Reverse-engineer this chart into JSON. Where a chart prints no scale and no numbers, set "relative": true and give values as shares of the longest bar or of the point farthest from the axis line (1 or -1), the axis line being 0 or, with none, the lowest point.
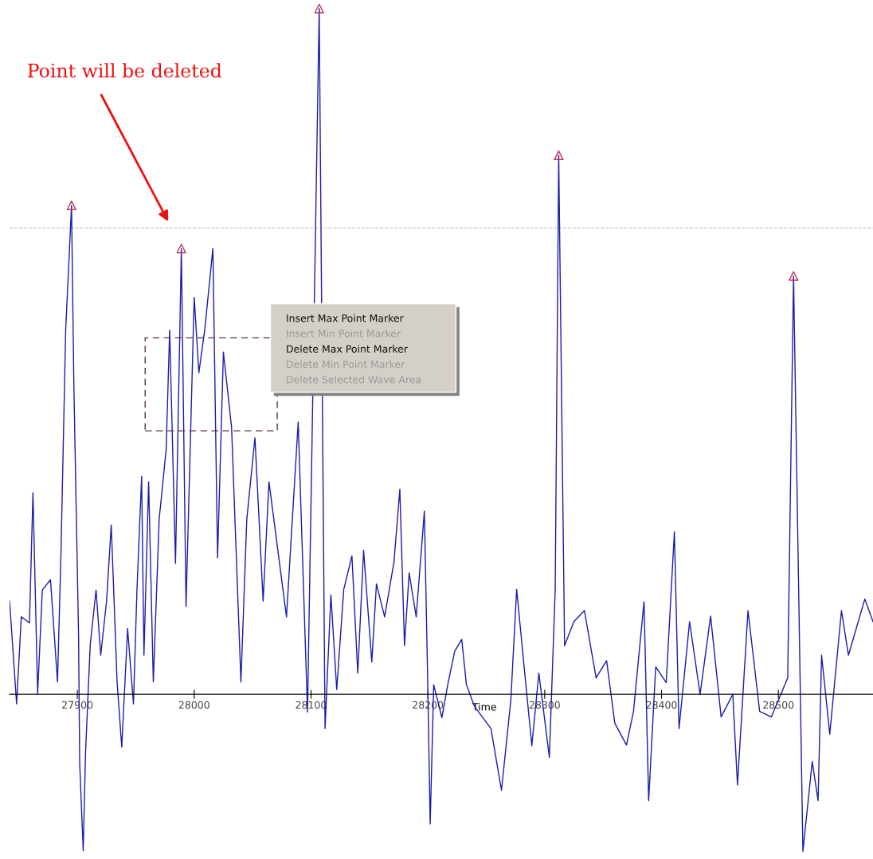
{
  "chart_data": {
    "type": "line",
    "relative": true,
    "xlabel": "Time",
    "xlim": [
      27842,
      28581
    ],
    "xticks": [
      27900,
      28000,
      28100,
      28200,
      28300,
      28400,
      28500
    ],
    "grid": false,
    "legend": false,
    "marker": "none",
    "line_style": "solid",
    "series": [
      {
        "color": "#1c1ca8",
        "x": [
          27842,
          27848,
          27852,
          27859,
          27862,
          27866,
          27870,
          27877,
          27883,
          27886,
          27890,
          27895,
          27897,
          27901,
          27902,
          27905,
          27907,
          27911,
          27916,
          27920,
          27925,
          27929,
          27934,
          27938,
          27943,
          27948,
          27951,
          27955,
          27957,
          27961,
          27965,
          27970,
          27976,
          27979,
          27984,
          27989,
          27993,
          28000,
          28004,
          28009,
          28016,
          28020,
          28025,
          28032,
          28040,
          28045,
          28052,
          28059,
          28064,
          28079,
          28089,
          28097,
          28107,
          28112,
          28117,
          28122,
          28128,
          28135,
          28140,
          28145,
          28152,
          28156,
          28163,
          28171,
          28176,
          28180,
          28184,
          28190,
          28197,
          28200,
          28202,
          28205,
          28212,
          28217,
          28223,
          28229,
          28233,
          28240,
          28247,
          28254,
          28263,
          28271,
          28276,
          28282,
          28289,
          28295,
          28304,
          28309,
          28312,
          28317,
          28325,
          28334,
          28344,
          28353,
          28360,
          28370,
          28376,
          28385,
          28389,
          28395,
          28404,
          28411,
          28415,
          28424,
          28433,
          28442,
          28451,
          28461,
          28465,
          28474,
          28484,
          28494,
          28508,
          28513,
          28521,
          28529,
          28534,
          28537,
          28544,
          28554,
          28560,
          28574,
          28581
        ],
        "values": [
          0.136,
          -0.014,
          0.113,
          0.104,
          0.294,
          0.001,
          0.152,
          0.167,
          0.018,
          0.208,
          0.531,
          0.713,
          0.452,
          0.089,
          -0.101,
          -0.228,
          -0.085,
          0.072,
          0.152,
          0.057,
          0.136,
          0.247,
          0.018,
          -0.077,
          0.096,
          -0.014,
          0.152,
          0.318,
          0.057,
          0.31,
          0.018,
          0.255,
          0.357,
          0.531,
          0.191,
          0.65,
          0.128,
          0.579,
          0.469,
          0.531,
          0.65,
          0.199,
          0.499,
          0.389,
          0.018,
          0.255,
          0.374,
          0.136,
          0.31,
          0.113,
          0.397,
          -0.026,
          1,
          -0.05,
          0.145,
          0.007,
          0.153,
          0.202,
          0.031,
          0.21,
          0.047,
          0.161,
          0.113,
          0.193,
          0.299,
          0.071,
          0.177,
          0.113,
          0.267,
          0.007,
          -0.189,
          0.014,
          -0.034,
          0.014,
          0.063,
          0.08,
          0.014,
          -0.018,
          -0.034,
          -0.05,
          -0.14,
          -0.009,
          0.153,
          0.047,
          -0.075,
          0.031,
          -0.092,
          0.153,
          0.786,
          0.071,
          0.106,
          0.122,
          0.024,
          0.049,
          -0.042,
          -0.074,
          -0.025,
          0.135,
          -0.155,
          0.04,
          0.017,
          0.237,
          -0.05,
          0.106,
          0,
          0.114,
          -0.033,
          0,
          -0.132,
          0.122,
          -0.025,
          -0.033,
          0.024,
          0.61,
          -0.229,
          -0.098,
          -0.155,
          0.057,
          -0.058,
          0.122,
          0.057,
          0.139,
          0.106
        ]
      },
      {
        "type": "scatter",
        "marker": "triangle",
        "color": "#c03050",
        "x": [
          27895,
          27989,
          28107,
          28312,
          28513
        ],
        "values": [
          0.713,
          0.65,
          1,
          0.786,
          0.61
        ]
      }
    ],
    "ref_lines": [
      {
        "axis": "y",
        "value": 0.68,
        "color": "#c8c8c8",
        "line_style": "dashed"
      }
    ],
    "annotations": [
      "Point will be deleted",
      "Insert Max Point Marker",
      "Insert Min Point Marker",
      "Delete Max Point Marker",
      "Delete Min Point Marker",
      "Delete Selected Wave Area"
    ]
  }
}
